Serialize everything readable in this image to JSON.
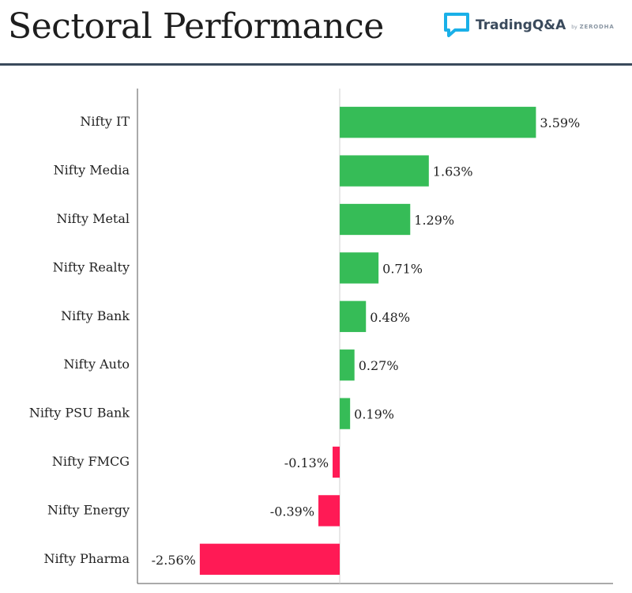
{
  "header": {
    "title": "Sectoral Performance",
    "brand": "TradingQ&A",
    "brand_by": "by",
    "brand_parent": "ZERODHA"
  },
  "colors": {
    "positive": "#36bc57",
    "negative": "#ff1a55",
    "divider": "#3a4a5c",
    "brand_mark": "#1ab0e8"
  },
  "chart_data": {
    "type": "bar",
    "orientation": "horizontal",
    "title": "Sectoral Performance",
    "categories": [
      "Nifty IT",
      "Nifty Media",
      "Nifty Metal",
      "Nifty Realty",
      "Nifty Bank",
      "Nifty Auto",
      "Nifty PSU Bank",
      "Nifty FMCG",
      "Nifty Energy",
      "Nifty Pharma"
    ],
    "values": [
      3.59,
      1.63,
      1.29,
      0.71,
      0.48,
      0.27,
      0.19,
      -0.13,
      -0.39,
      -2.56
    ],
    "labels": [
      "3.59%",
      "1.63%",
      "1.29%",
      "0.71%",
      "0.48%",
      "0.27%",
      "0.19%",
      "-0.13%",
      "-0.39%",
      "-2.56%"
    ],
    "xlim": [
      -3.7,
      5.0
    ],
    "grid": false,
    "legend": "none"
  }
}
